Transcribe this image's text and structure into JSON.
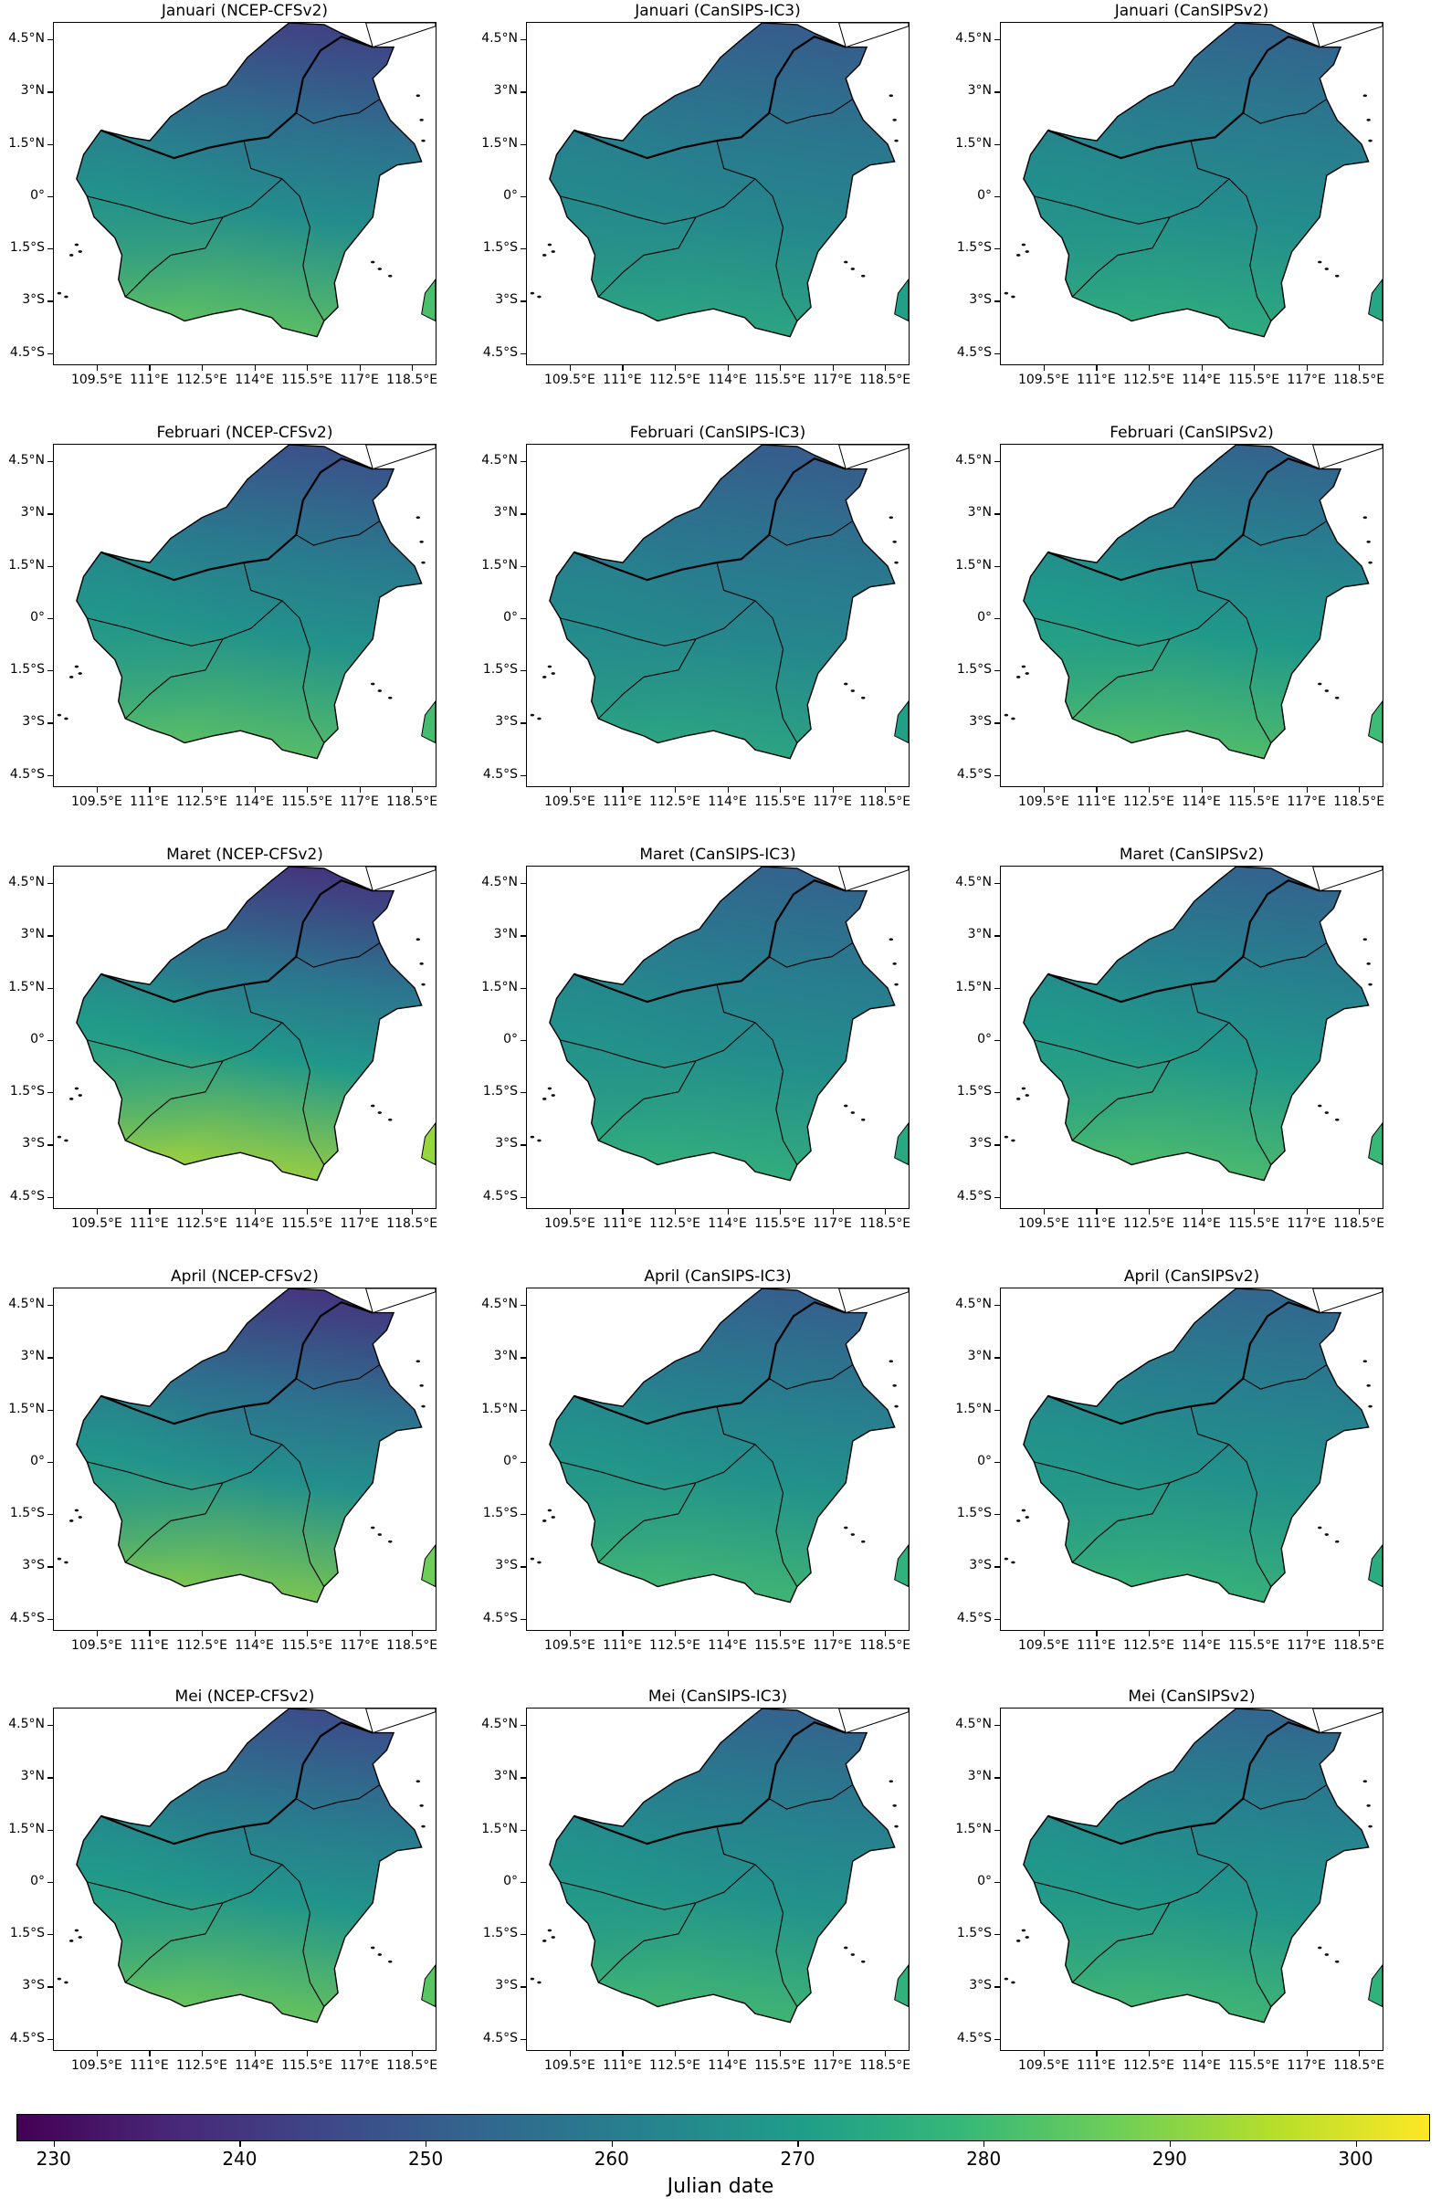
{
  "figure": {
    "colorbar": {
      "label": "Julian date",
      "range": [
        228,
        304
      ],
      "ticks": [
        "230",
        "240",
        "250",
        "260",
        "270",
        "280",
        "290",
        "300"
      ],
      "tick_values": [
        230,
        240,
        250,
        260,
        270,
        280,
        290,
        300
      ],
      "colormap": "viridis",
      "colors": [
        "#440154",
        "#482878",
        "#3e4989",
        "#31688e",
        "#26828e",
        "#1f9e89",
        "#35b779",
        "#6ece58",
        "#b5de2b",
        "#fde725"
      ]
    },
    "y_ticks": [
      "4.5°N",
      "3°N",
      "1.5°N",
      "0°",
      "1.5°S",
      "3°S",
      "4.5°S"
    ],
    "y_tick_values": [
      4.5,
      3,
      1.5,
      0,
      -1.5,
      -3,
      -4.5
    ],
    "x_ticks": [
      "109.5°E",
      "111°E",
      "112.5°E",
      "114°E",
      "115.5°E",
      "117°E",
      "118.5°E"
    ],
    "x_tick_values": [
      109.5,
      111,
      112.5,
      114,
      115.5,
      117,
      118.5
    ],
    "panels": [
      {
        "title": "Januari (NCEP-CFSv2)",
        "north_value": 243,
        "south_value": 287
      },
      {
        "title": "Januari (CanSIPS-IC3)",
        "north_value": 250,
        "south_value": 276
      },
      {
        "title": "Januari (CanSIPSv2)",
        "north_value": 252,
        "south_value": 278
      },
      {
        "title": "Februari (NCEP-CFSv2)",
        "north_value": 247,
        "south_value": 286
      },
      {
        "title": "Februari (CanSIPS-IC3)",
        "north_value": 250,
        "south_value": 276
      },
      {
        "title": "Februari (CanSIPSv2)",
        "north_value": 252,
        "south_value": 285
      },
      {
        "title": "Maret (NCEP-CFSv2)",
        "north_value": 240,
        "south_value": 297
      },
      {
        "title": "Maret (CanSIPS-IC3)",
        "north_value": 252,
        "south_value": 279
      },
      {
        "title": "Maret (CanSIPSv2)",
        "north_value": 252,
        "south_value": 284
      },
      {
        "title": "April (NCEP-CFSv2)",
        "north_value": 240,
        "south_value": 292
      },
      {
        "title": "April (CanSIPS-IC3)",
        "north_value": 251,
        "south_value": 282
      },
      {
        "title": "April (CanSIPSv2)",
        "north_value": 253,
        "south_value": 280
      },
      {
        "title": "Mei (NCEP-CFSv2)",
        "north_value": 246,
        "south_value": 289
      },
      {
        "title": "Mei (CanSIPS-IC3)",
        "north_value": 252,
        "south_value": 282
      },
      {
        "title": "Mei (CanSIPSv2)",
        "north_value": 253,
        "south_value": 282
      }
    ]
  }
}
